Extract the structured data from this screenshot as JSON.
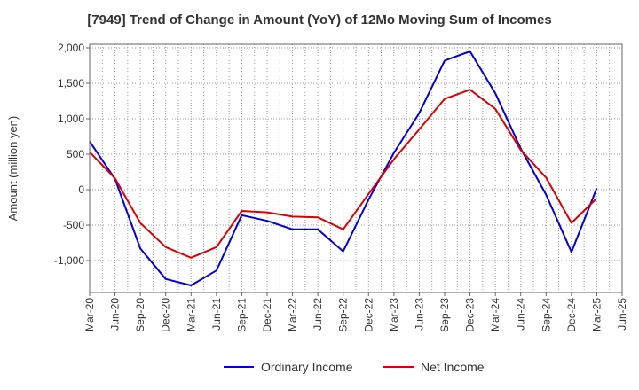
{
  "chart_data": {
    "type": "line",
    "title": "[7949]  Trend of Change in Amount (YoY) of 12Mo Moving Sum of Incomes",
    "xlabel": "",
    "ylabel": "Amount (million yen)",
    "ylim": [
      -1450,
      2050
    ],
    "yticks": [
      -1000,
      -500,
      0,
      500,
      1000,
      1500,
      2000
    ],
    "ytick_labels": [
      "-1,000",
      "-500",
      "0",
      "500",
      "1,000",
      "1,500",
      "2,000"
    ],
    "categories": [
      "Mar-20",
      "Jun-20",
      "Sep-20",
      "Dec-20",
      "Mar-21",
      "Jun-21",
      "Sep-21",
      "Dec-21",
      "Mar-22",
      "Jun-22",
      "Sep-22",
      "Dec-22",
      "Mar-23",
      "Jun-23",
      "Sep-23",
      "Dec-23",
      "Mar-24",
      "Jun-24",
      "Sep-24",
      "Dec-24",
      "Mar-25",
      "Jun-25"
    ],
    "series": [
      {
        "name": "Ordinary Income",
        "color": "#0000dd",
        "values": [
          680,
          150,
          -830,
          -1260,
          -1350,
          -1140,
          -360,
          -440,
          -560,
          -560,
          -870,
          -140,
          520,
          1080,
          1820,
          1950,
          1360,
          580,
          -70,
          -880,
          20,
          null
        ]
      },
      {
        "name": "Net Income",
        "color": "#dd0000",
        "values": [
          530,
          160,
          -470,
          -810,
          -960,
          -810,
          -300,
          -320,
          -380,
          -390,
          -560,
          -60,
          430,
          850,
          1280,
          1410,
          1140,
          560,
          170,
          -470,
          -120,
          null
        ]
      }
    ],
    "grid": true,
    "legend_position": "bottom"
  }
}
